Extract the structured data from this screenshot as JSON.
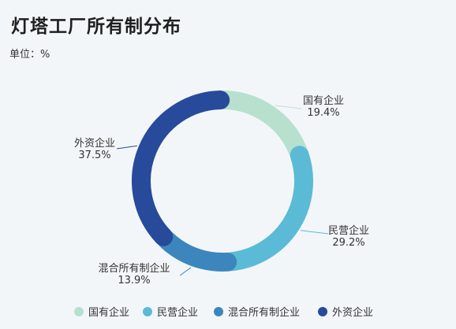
{
  "header": {
    "title": "灯塔工厂所有制分布",
    "unit": "单位：%"
  },
  "chart_data": {
    "type": "pie",
    "title": "灯塔工厂所有制分布",
    "categories": [
      "国有企业",
      "民营企业",
      "混合所有制企业",
      "外资企业"
    ],
    "values": [
      19.4,
      29.2,
      13.9,
      37.5
    ],
    "value_labels": [
      "19.4%",
      "29.2%",
      "13.9%",
      "37.5%"
    ],
    "colors": [
      "#b8e0cf",
      "#5bbbd6",
      "#3c86bd",
      "#284a9a"
    ],
    "style": "donut",
    "legend": "bottom-center"
  }
}
